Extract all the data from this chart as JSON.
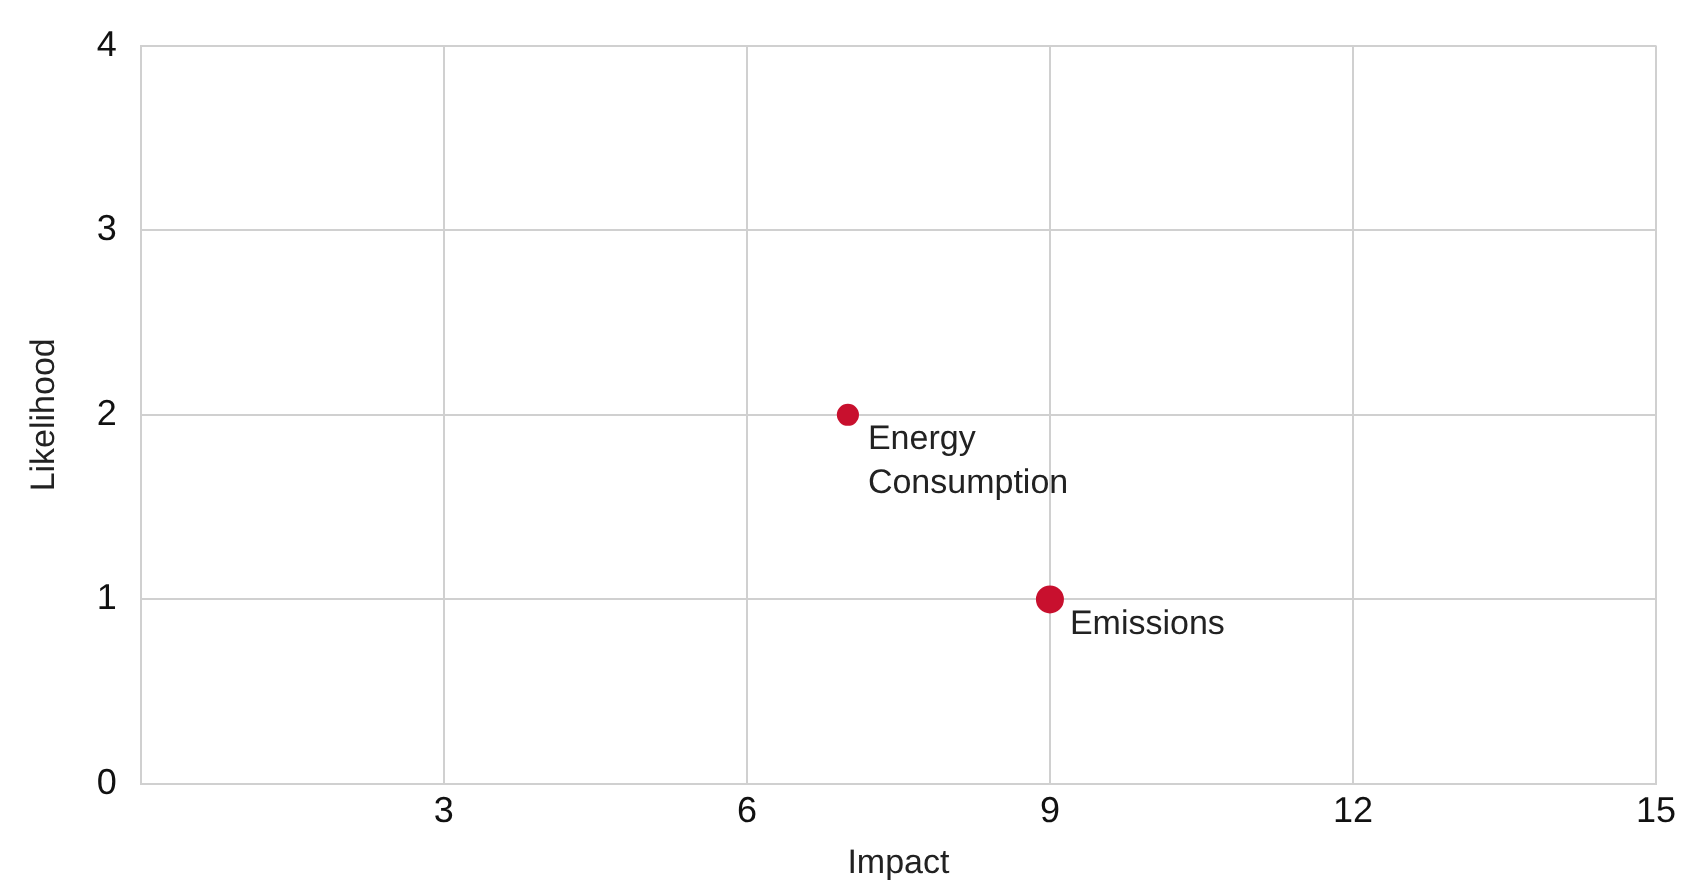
{
  "chart_data": {
    "type": "bubble",
    "xlabel": "Impact",
    "ylabel": "Likelihood",
    "x": [
      7,
      9
    ],
    "values": [
      2,
      1
    ],
    "sizes": [
      0.6,
      1
    ],
    "color": "#c8102e",
    "annotations": [
      {
        "text": "Energy Consumption",
        "x": 7,
        "y": 2
      },
      {
        "text": "Emissions",
        "x": 9,
        "y": 1
      }
    ],
    "xlim": [
      0,
      15
    ],
    "xticks": [
      3,
      6,
      9,
      12,
      15
    ],
    "ylim": [
      0,
      4
    ],
    "yticks": [
      0,
      1,
      2,
      3,
      4
    ],
    "grid": true,
    "legend": false
  }
}
